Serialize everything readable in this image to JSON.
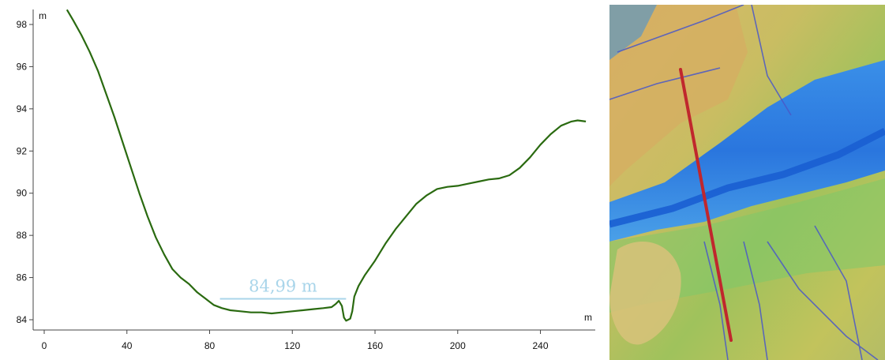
{
  "chart_data": {
    "type": "line",
    "title": "",
    "x_unit": "m",
    "y_unit": "m",
    "xlim": [
      0,
      265
    ],
    "ylim": [
      83.5,
      98.5
    ],
    "x_ticks": [
      0,
      40,
      80,
      120,
      160,
      200,
      240
    ],
    "y_ticks": [
      84,
      86,
      88,
      90,
      92,
      94,
      96,
      98
    ],
    "grid": false,
    "line_color": "#2a6a10",
    "series": [
      {
        "x": [
          11,
          14,
          18,
          22,
          26,
          30,
          34,
          38,
          42,
          46,
          50,
          54,
          58,
          62,
          66,
          70,
          74,
          78,
          82,
          86,
          90,
          95,
          100,
          105,
          110,
          115,
          120,
          125,
          130,
          135,
          139,
          141,
          142.5,
          144,
          145,
          146,
          147,
          148,
          149,
          150,
          152,
          155,
          160,
          165,
          170,
          175,
          180,
          185,
          190,
          195,
          200,
          205,
          210,
          215,
          220,
          225,
          230,
          235,
          240,
          245,
          250,
          255,
          258,
          262
        ],
        "y": [
          98.7,
          98.2,
          97.5,
          96.7,
          95.8,
          94.7,
          93.6,
          92.4,
          91.2,
          90.0,
          88.9,
          87.9,
          87.1,
          86.4,
          86.0,
          85.7,
          85.3,
          85.0,
          84.7,
          84.55,
          84.45,
          84.4,
          84.35,
          84.35,
          84.3,
          84.35,
          84.4,
          84.45,
          84.5,
          84.55,
          84.6,
          84.75,
          84.9,
          84.65,
          84.1,
          83.95,
          84.0,
          84.05,
          84.4,
          85.1,
          85.6,
          86.1,
          86.8,
          87.6,
          88.3,
          88.9,
          89.5,
          89.9,
          90.2,
          90.3,
          90.35,
          90.45,
          90.55,
          90.65,
          90.7,
          90.85,
          91.2,
          91.7,
          92.3,
          92.8,
          93.2,
          93.4,
          93.45,
          93.4
        ]
      }
    ],
    "annotations": [
      {
        "text": "84,99 m",
        "x_start": 85,
        "x_end": 146,
        "y": 84.99,
        "color": "#a9d5ea"
      }
    ]
  },
  "map_image": {
    "description_colors": [
      "#d7b56a",
      "#c8c060",
      "#6ab4a8",
      "#2f7fe0",
      "#1e64d8"
    ],
    "profile_line_color": "#c0272d"
  }
}
